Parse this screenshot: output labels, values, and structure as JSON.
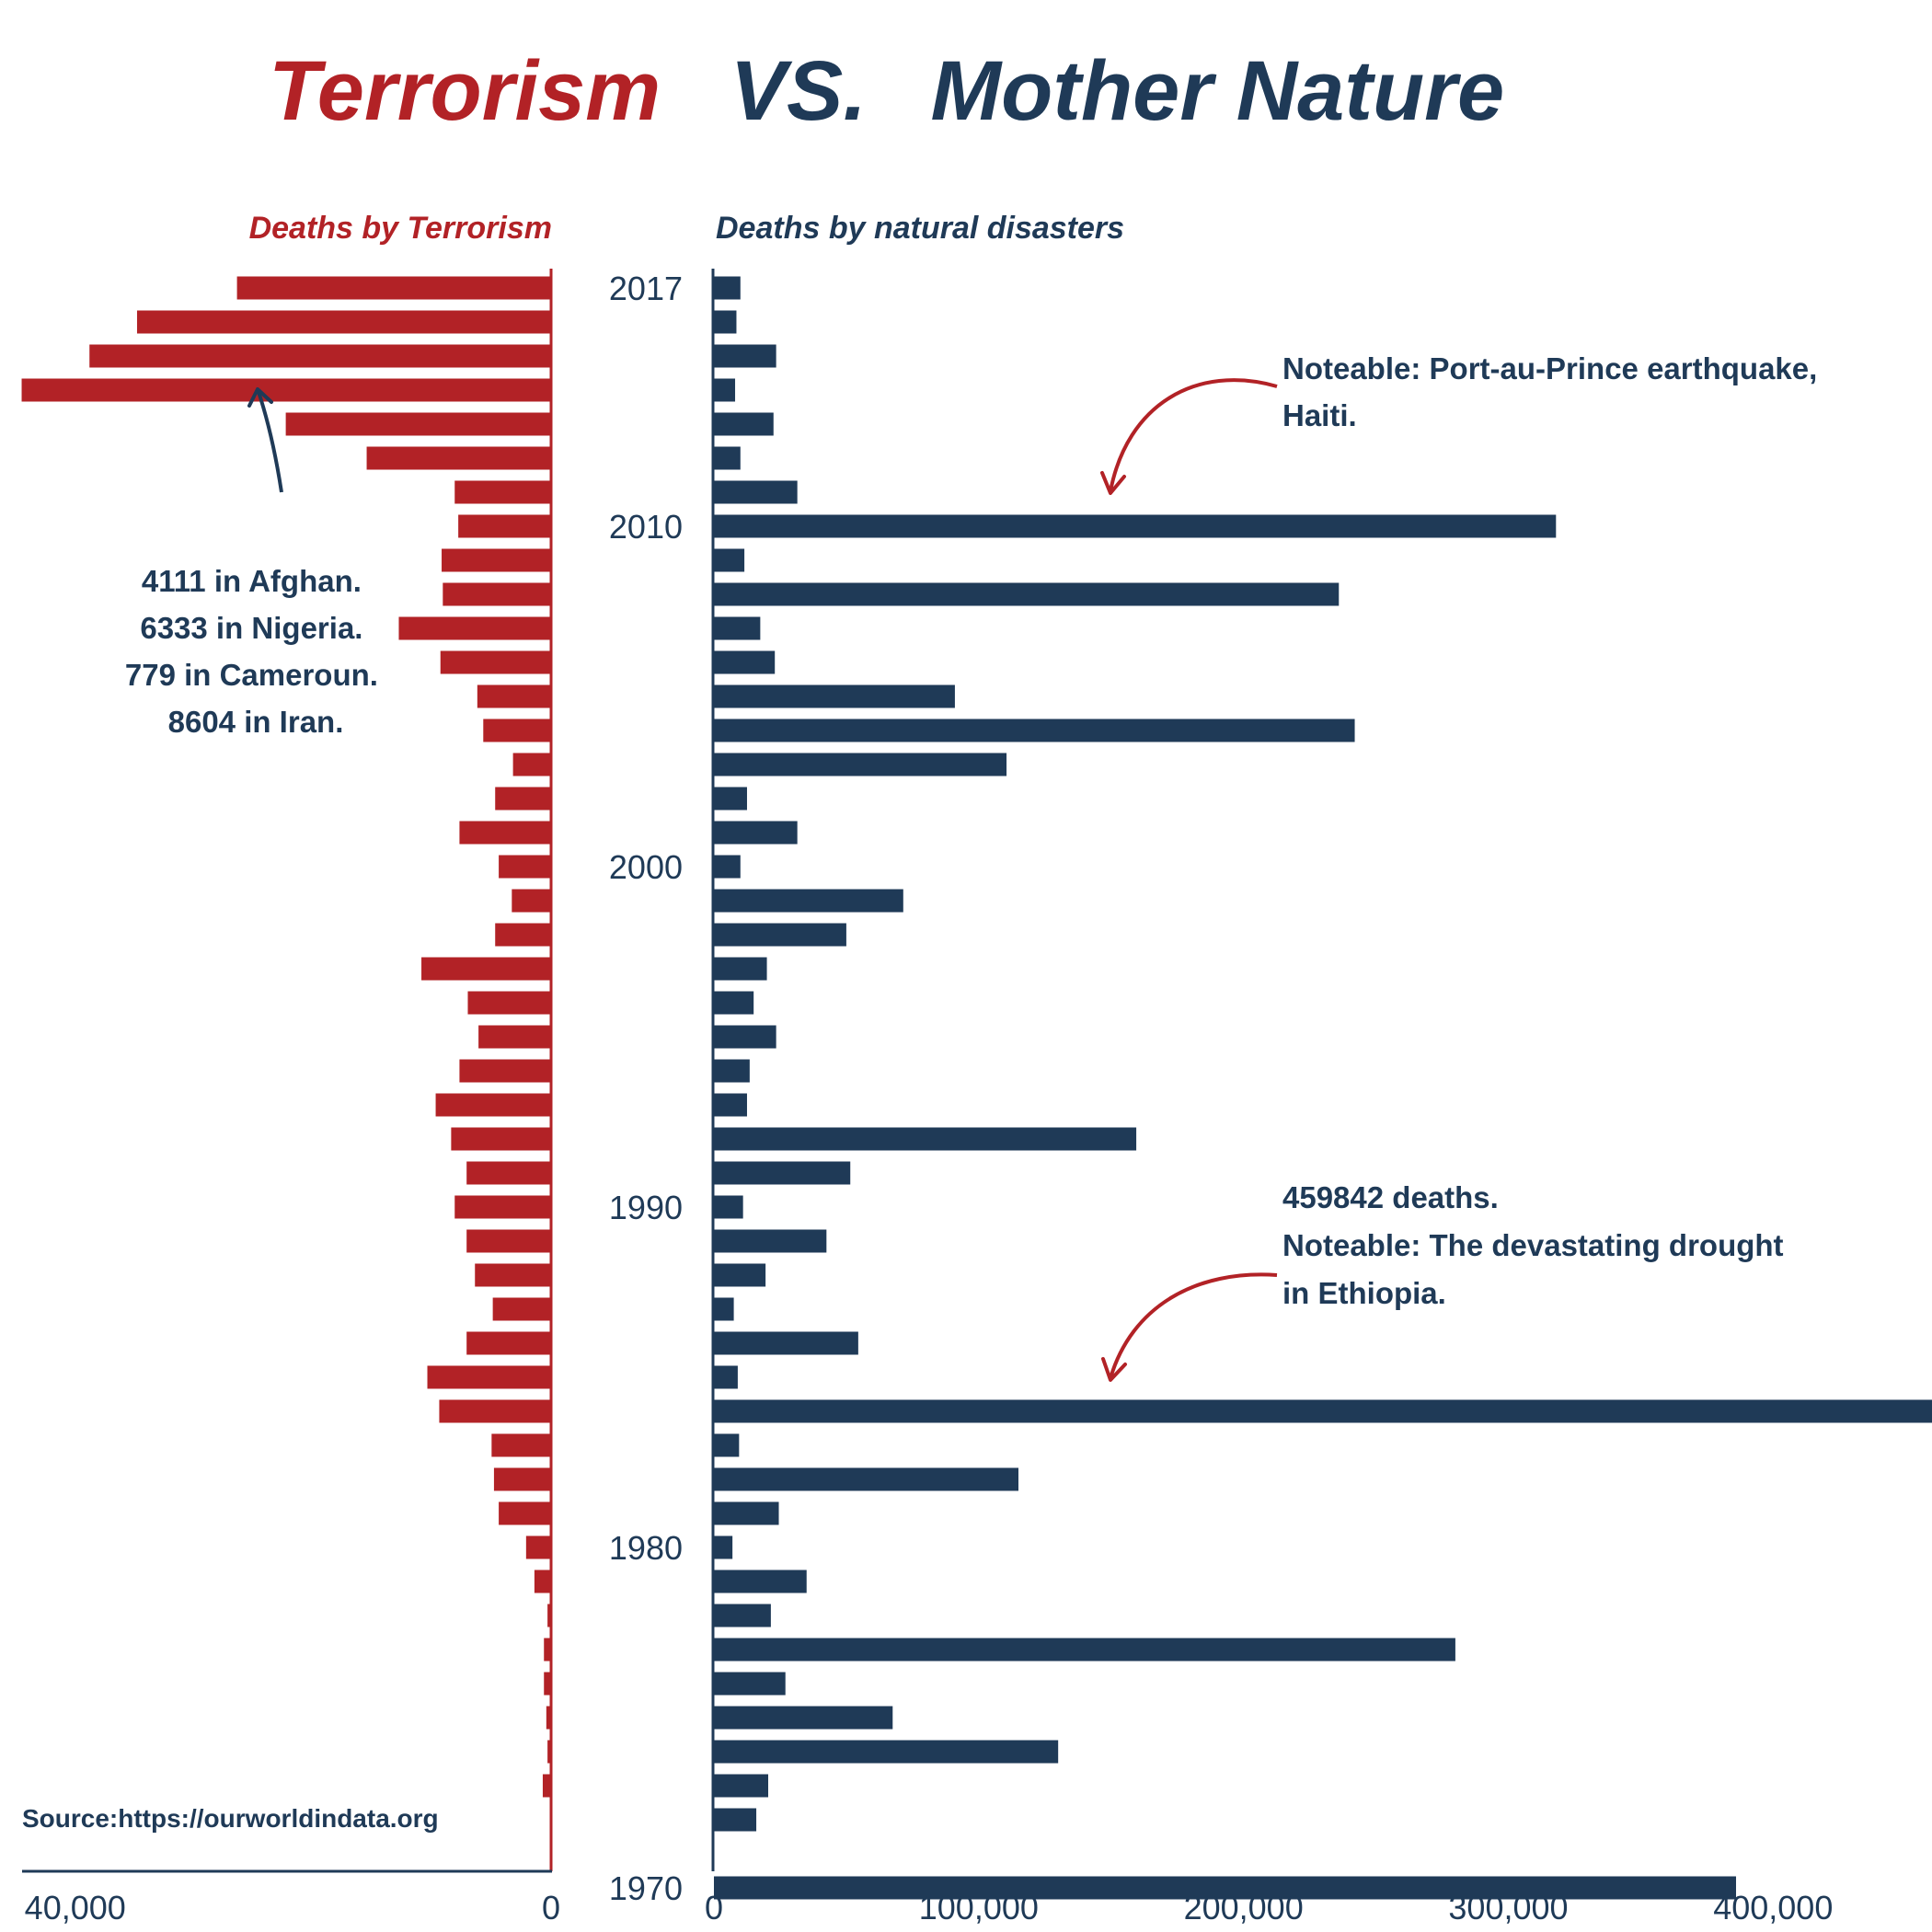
{
  "colors": {
    "terror": "#b22226",
    "nature": "#1f3a57"
  },
  "title": {
    "part1": "Terrorism",
    "part2": "VS.",
    "part3": "Mother Nature"
  },
  "source": "Source:https://ourworldindata.org",
  "chart_data": {
    "type": "bar",
    "orientation": "horizontal",
    "title": "Terrorism VS. Mother Nature",
    "years": [
      2017,
      2016,
      2015,
      2014,
      2013,
      2012,
      2011,
      2010,
      2009,
      2008,
      2007,
      2006,
      2005,
      2004,
      2003,
      2002,
      2001,
      2000,
      1999,
      1998,
      1997,
      1996,
      1995,
      1994,
      1993,
      1992,
      1991,
      1990,
      1989,
      1988,
      1987,
      1986,
      1985,
      1984,
      1983,
      1982,
      1981,
      1980,
      1979,
      1978,
      1977,
      1976,
      1975,
      1974,
      1973,
      1972,
      1971,
      1970
    ],
    "year_tick_labels": [
      "2017",
      "2010",
      "2000",
      "1990",
      "1980",
      "1970"
    ],
    "series": [
      {
        "name": "Deaths by Terrorism",
        "xlim": [
          44000,
          0
        ],
        "tick_labels": [
          "40,000",
          "0"
        ],
        "values": [
          26400,
          34800,
          38800,
          44500,
          22300,
          15500,
          8100,
          7800,
          9200,
          9100,
          12800,
          9300,
          6200,
          5700,
          3200,
          4700,
          7700,
          4400,
          3300,
          4700,
          10900,
          7000,
          6100,
          7700,
          9700,
          8400,
          7100,
          8100,
          7100,
          6400,
          4900,
          7100,
          10400,
          9400,
          5000,
          4800,
          4400,
          2100,
          1400,
          300,
          600,
          600,
          400,
          300,
          700,
          0,
          0,
          0
        ]
      },
      {
        "name": "Deaths by natural disasters",
        "xlim": [
          0,
          460000
        ],
        "tick_labels": [
          "0",
          "100,000",
          "200,000",
          "300,000",
          "400,000"
        ],
        "values": [
          10000,
          8500,
          23500,
          8000,
          22500,
          10000,
          31500,
          318000,
          11500,
          236000,
          17500,
          23000,
          91000,
          242000,
          110500,
          12500,
          31500,
          10000,
          71500,
          50000,
          20000,
          15000,
          23500,
          13500,
          12500,
          159500,
          51500,
          11000,
          42500,
          19500,
          7500,
          54500,
          9000,
          460000,
          9500,
          115000,
          24500,
          7000,
          35000,
          21500,
          280000,
          27000,
          67500,
          130000,
          20500,
          16000,
          0,
          386000
        ]
      }
    ],
    "annotations": [
      {
        "lines": [
          "4111 in Afghan.",
          "6333 in Nigeria.",
          "779 in Cameroun.",
          "8604 in Iran."
        ]
      },
      {
        "lines": [
          "Noteable: Port-au-Prince earthquake,",
          "Haiti."
        ]
      },
      {
        "lines": [
          "459842 deaths.",
          "Noteable: The devastating drought",
          "in Ethiopia."
        ]
      }
    ]
  }
}
